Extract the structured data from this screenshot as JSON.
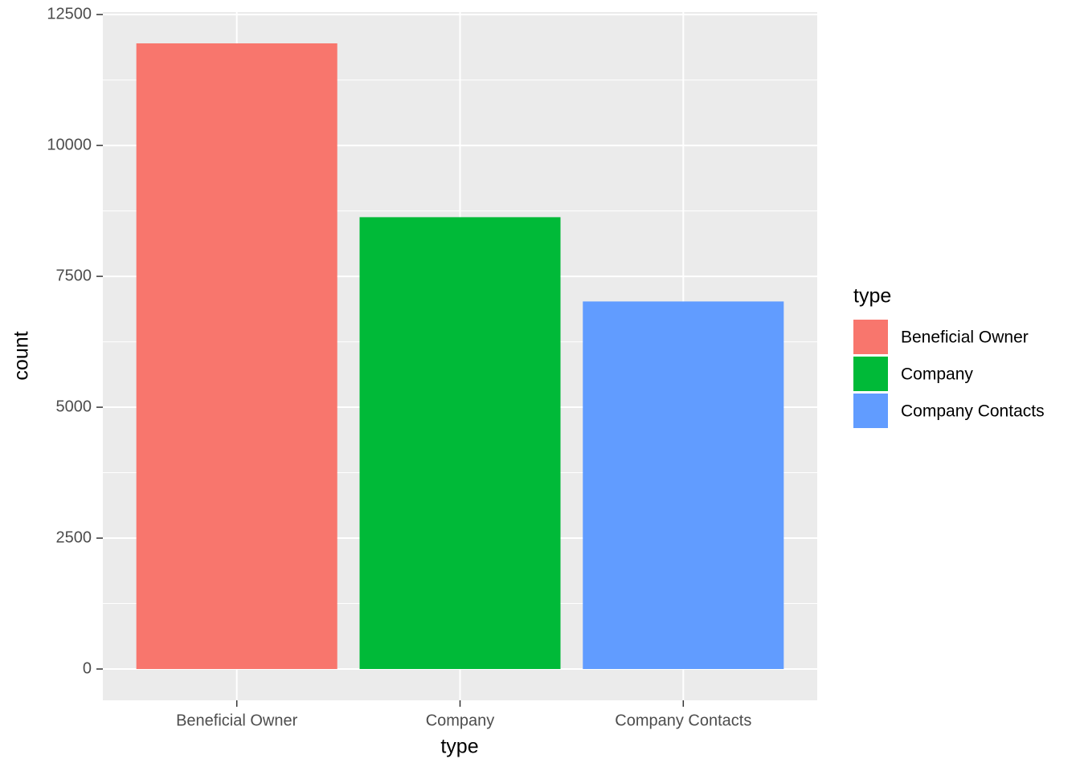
{
  "chart_data": {
    "type": "bar",
    "categories": [
      "Beneficial Owner",
      "Company",
      "Company Contacts"
    ],
    "values": [
      11950,
      8630,
      7020
    ],
    "colors": [
      "#F8766D",
      "#00BA38",
      "#619CFF"
    ],
    "ylim": [
      -598,
      12548
    ],
    "yticks": [
      0,
      2500,
      5000,
      7500,
      10000,
      12500
    ],
    "xlabel": "type",
    "ylabel": "count",
    "legend_title": "type",
    "legend": "right",
    "grid": true
  }
}
